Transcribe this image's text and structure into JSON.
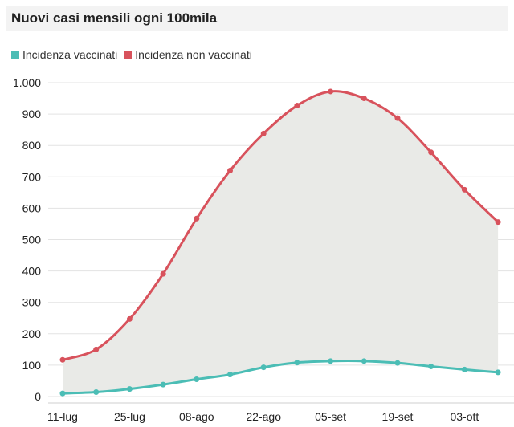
{
  "chart_data": {
    "type": "area",
    "title": "Nuovi casi mensili ogni 100mila",
    "categories": [
      "11-lug",
      "18-lug",
      "25-lug",
      "01-ago",
      "08-ago",
      "15-ago",
      "22-ago",
      "29-ago",
      "05-set",
      "12-set",
      "19-set",
      "26-set",
      "03-ott",
      "10-ott"
    ],
    "x_tick_labels": [
      "11-lug",
      "25-lug",
      "08-ago",
      "22-ago",
      "05-set",
      "19-set",
      "03-ott"
    ],
    "ylim": [
      0,
      1000
    ],
    "y_ticks": [
      0,
      100,
      200,
      300,
      400,
      500,
      600,
      700,
      800,
      900,
      1000
    ],
    "y_tick_labels": [
      "0",
      "100",
      "200",
      "300",
      "400",
      "500",
      "600",
      "700",
      "800",
      "900",
      "1.000"
    ],
    "grid": true,
    "legend_position": "top-left",
    "series": [
      {
        "name": "Incidenza vaccinati",
        "color": "#4bbdb5",
        "values": [
          10,
          14,
          24,
          38,
          55,
          70,
          93,
          108,
          113,
          113,
          107,
          96,
          86,
          77
        ]
      },
      {
        "name": "Incidenza non vaccinati",
        "color": "#d8525c",
        "values": [
          117,
          150,
          247,
          391,
          567,
          720,
          838,
          927,
          972,
          950,
          887,
          778,
          659,
          556
        ]
      }
    ],
    "fill_color": "#e9eae7"
  }
}
